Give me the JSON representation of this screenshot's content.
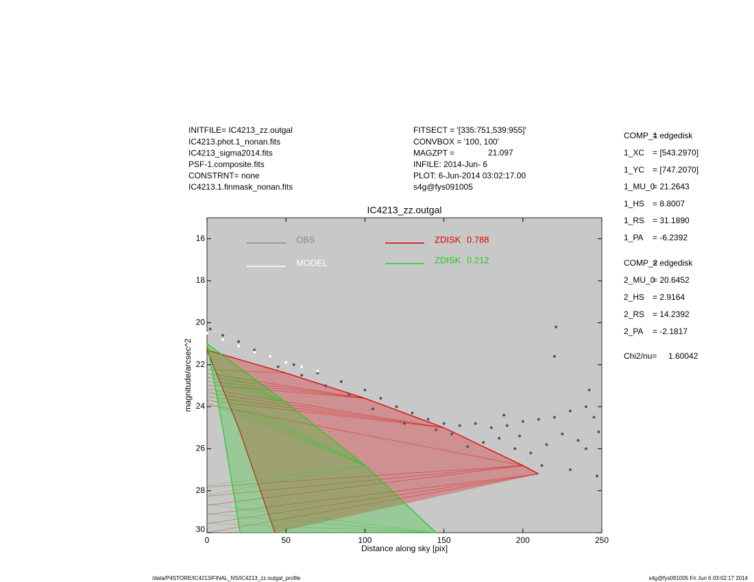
{
  "info_left": [
    "INITFILE= IC4213_zz.outgal",
    "IC4213.phot.1_nonan.fits",
    "IC4213_sigma2014.fits",
    "PSF-1.composite.fits",
    "CONSTRNT= none",
    "IC4213.1.finmask_nonan.fits"
  ],
  "info_middle": [
    "FITSECT = '[335:751,539:955]'",
    "CONVBOX = '100, 100'",
    "MAGZPT =",
    "INFILE: 2014-Jun- 6",
    "PLOT:  6-Jun-2014 03:02:17.00",
    "s4g@fys091005"
  ],
  "magzpt": "21.097",
  "params_1": [
    {
      "name": "COMP_1",
      "value": "= edgedisk"
    },
    {
      "name": "1_XC",
      "value": "= [543.2970]"
    },
    {
      "name": "1_YC",
      "value": "= [747.2070]"
    },
    {
      "name": "1_MU_0",
      "value": "= 21.2643"
    },
    {
      "name": "1_HS",
      "value": "= 8.8007"
    },
    {
      "name": "1_RS",
      "value": "= 31.1890"
    },
    {
      "name": "1_PA",
      "value": "= -6.2392"
    }
  ],
  "params_2": [
    {
      "name": "COMP_2",
      "value": "= edgedisk"
    },
    {
      "name": "2_MU_0",
      "value": "= 20.6452"
    },
    {
      "name": "2_HS",
      "value": "= 2.9164"
    },
    {
      "name": "2_RS",
      "value": "= 14.2392"
    },
    {
      "name": "2_PA",
      "value": "= -2.1817"
    }
  ],
  "chi2": {
    "name": "Chi2/nu=",
    "value": "1.60042"
  },
  "footer_left": "/data/P4STORE/IC4213/FINAL_NS/IC4213_zz.outgal_profile",
  "footer_right": "s4g@fys091005  Fri Jun  6 03:02:17 2014",
  "chart_data": {
    "type": "scatter",
    "title": "IC4213_zz.outgal",
    "x_label": "Distance along sky [pix]",
    "y_label": "magnitude/arcsec^2",
    "xlim": [
      0,
      250
    ],
    "xticks": [
      0,
      50,
      100,
      150,
      200,
      250
    ],
    "ylim": [
      30,
      15
    ],
    "yticks": [
      16,
      18,
      20,
      22,
      24,
      26,
      28,
      30
    ],
    "background": "#c8c8c8",
    "series": [
      {
        "name": "OBS",
        "color": "#555555",
        "legend_color": "#8a8a8a",
        "style": "points",
        "x": [
          2,
          10,
          20,
          30,
          40,
          55,
          70,
          85,
          100,
          110,
          120,
          130,
          140,
          150,
          160,
          170,
          180,
          190,
          200,
          210,
          220,
          230,
          240,
          245,
          225,
          235,
          215,
          205,
          195,
          185,
          175,
          165,
          155,
          145,
          125,
          105,
          90,
          75,
          60,
          45,
          240,
          248,
          230,
          220,
          221,
          242,
          247,
          212,
          198,
          188
        ],
        "values": [
          20.3,
          20.6,
          20.9,
          21.3,
          21.6,
          22.0,
          22.4,
          22.8,
          23.2,
          23.6,
          24.0,
          24.3,
          24.6,
          24.8,
          24.9,
          24.8,
          25.0,
          24.9,
          24.7,
          24.6,
          24.5,
          24.2,
          24.0,
          24.5,
          25.3,
          25.6,
          25.8,
          26.2,
          26.0,
          25.5,
          25.7,
          25.9,
          25.3,
          25.1,
          24.8,
          24.1,
          23.4,
          23.0,
          22.5,
          22.1,
          26.0,
          25.2,
          27.0,
          21.6,
          20.2,
          23.2,
          27.3,
          26.8,
          25.4,
          24.4
        ]
      },
      {
        "name": "MODEL",
        "color": "#ffffff",
        "legend_color": "#ffffff",
        "style": "points",
        "x": [
          0,
          10,
          20,
          30,
          40,
          50,
          60,
          70
        ],
        "values": [
          20.5,
          20.8,
          21.1,
          21.4,
          21.6,
          21.9,
          22.1,
          22.3
        ]
      },
      {
        "name": "ZDISK",
        "fraction": "0.788",
        "color": "#e00000",
        "legend_color": "#e00000",
        "style": "fan",
        "x": [
          0,
          50,
          100,
          150,
          200,
          210
        ],
        "values": [
          21.3,
          22.4,
          23.6,
          25.0,
          26.8,
          27.2
        ],
        "lower_x": [
          0,
          20,
          43
        ],
        "lower_values": [
          21.3,
          25.0,
          30.0
        ]
      },
      {
        "name": "ZDISK",
        "fraction": "0.212",
        "color": "#22cc22",
        "legend_color": "#22cc22",
        "style": "fan",
        "x": [
          0,
          50,
          100,
          145
        ],
        "values": [
          21.0,
          23.8,
          26.8,
          30.0
        ],
        "lower_x": [
          0,
          10,
          21
        ],
        "lower_values": [
          21.0,
          25.0,
          30.0
        ]
      }
    ]
  }
}
